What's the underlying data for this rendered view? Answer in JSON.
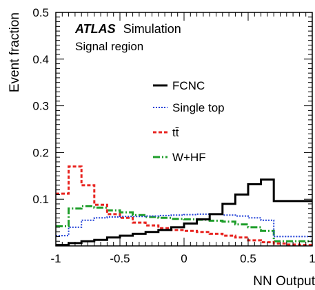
{
  "chart_data": {
    "type": "line",
    "step": true,
    "xlabel": "NN Output",
    "ylabel": "Event fraction",
    "xlim": [
      -1,
      1
    ],
    "ylim": [
      0,
      0.5
    ],
    "grid": false,
    "legend_position": "center-right",
    "annotation": {
      "experiment": "ATLAS",
      "label": "Simulation",
      "region": "Signal region"
    },
    "x_ticks": [
      {
        "value": -1,
        "label": "-1"
      },
      {
        "value": -0.5,
        "label": "-0.5"
      },
      {
        "value": 0,
        "label": "0"
      },
      {
        "value": 0.5,
        "label": "0.5"
      },
      {
        "value": 1,
        "label": "1"
      }
    ],
    "y_ticks": [
      {
        "value": 0.1,
        "label": "0.1"
      },
      {
        "value": 0.2,
        "label": "0.2"
      },
      {
        "value": 0.3,
        "label": "0.3"
      },
      {
        "value": 0.4,
        "label": "0.4"
      },
      {
        "value": 0.5,
        "label": "0.5"
      }
    ],
    "bin_edges": [
      -1.0,
      -0.9,
      -0.8,
      -0.7,
      -0.6,
      -0.5,
      -0.4,
      -0.3,
      -0.2,
      -0.1,
      0.0,
      0.1,
      0.2,
      0.3,
      0.4,
      0.5,
      0.6,
      0.7,
      0.8,
      0.9,
      1.0
    ],
    "series": [
      {
        "name": "FCNC",
        "color": "#000000",
        "dash": "solid",
        "values": [
          0.002,
          0.006,
          0.01,
          0.013,
          0.018,
          0.022,
          0.026,
          0.03,
          0.034,
          0.04,
          0.048,
          0.057,
          0.068,
          0.09,
          0.11,
          0.132,
          0.142,
          0.096,
          0.096,
          0.096
        ]
      },
      {
        "name": "Single top",
        "color": "#1f3fd6",
        "dash": "dotted",
        "values": [
          0.022,
          0.04,
          0.055,
          0.06,
          0.062,
          0.063,
          0.063,
          0.064,
          0.065,
          0.066,
          0.067,
          0.068,
          0.068,
          0.066,
          0.064,
          0.06,
          0.055,
          0.02,
          0.02,
          0.02
        ]
      },
      {
        "name": "tt̄",
        "color": "#e8231f",
        "dash": "dashed",
        "values": [
          0.112,
          0.17,
          0.13,
          0.088,
          0.068,
          0.06,
          0.05,
          0.044,
          0.038,
          0.034,
          0.032,
          0.03,
          0.026,
          0.022,
          0.018,
          0.012,
          0.008,
          0.005,
          0.003,
          0.002
        ]
      },
      {
        "name": "W+HF",
        "color": "#1e9e2a",
        "dash": "dashdot",
        "values": [
          0.042,
          0.08,
          0.085,
          0.082,
          0.076,
          0.072,
          0.066,
          0.062,
          0.06,
          0.058,
          0.057,
          0.056,
          0.054,
          0.052,
          0.046,
          0.04,
          0.032,
          0.01,
          0.01,
          0.01
        ]
      }
    ]
  }
}
